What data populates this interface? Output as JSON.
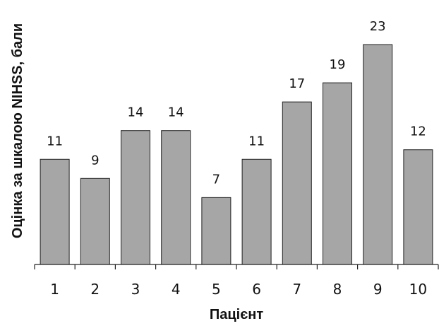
{
  "chart_data": {
    "type": "bar",
    "categories": [
      "1",
      "2",
      "3",
      "4",
      "5",
      "6",
      "7",
      "8",
      "9",
      "10"
    ],
    "values": [
      11,
      9,
      14,
      14,
      7,
      11,
      17,
      19,
      23,
      12
    ],
    "title": "",
    "xlabel": "Пацієнт",
    "ylabel": "Оцінка за шкалою NIHSS, бали",
    "ylim": [
      0,
      23
    ],
    "grid": false,
    "bar_color": "#a6a6a6",
    "bar_edge_color": "#222222",
    "data_labels": true
  }
}
